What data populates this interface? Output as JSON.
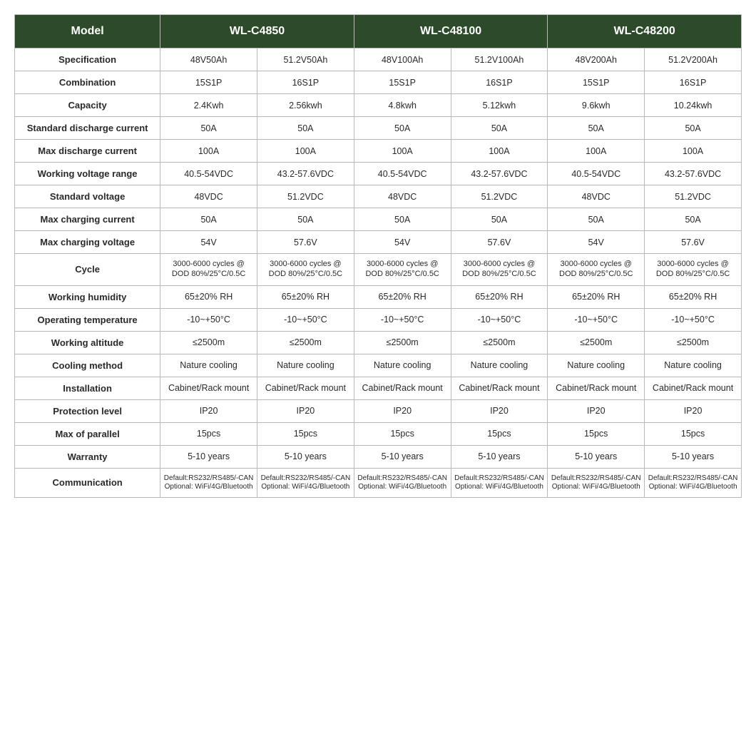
{
  "header": {
    "model_label": "Model",
    "models": [
      "WL-C4850",
      "WL-C48100",
      "WL-C48200"
    ]
  },
  "rows": [
    {
      "label": "Specification",
      "cells": [
        "48V50Ah",
        "51.2V50Ah",
        "48V100Ah",
        "51.2V100Ah",
        "48V200Ah",
        "51.2V200Ah"
      ]
    },
    {
      "label": "Combination",
      "cells": [
        "15S1P",
        "16S1P",
        "15S1P",
        "16S1P",
        "15S1P",
        "16S1P"
      ]
    },
    {
      "label": "Capacity",
      "cells": [
        "2.4Kwh",
        "2.56kwh",
        "4.8kwh",
        "5.12kwh",
        "9.6kwh",
        "10.24kwh"
      ]
    },
    {
      "label": "Standard discharge current",
      "cells": [
        "50A",
        "50A",
        "50A",
        "50A",
        "50A",
        "50A"
      ]
    },
    {
      "label": "Max discharge current",
      "cells": [
        "100A",
        "100A",
        "100A",
        "100A",
        "100A",
        "100A"
      ]
    },
    {
      "label": "Working voltage range",
      "cells": [
        "40.5-54VDC",
        "43.2-57.6VDC",
        "40.5-54VDC",
        "43.2-57.6VDC",
        "40.5-54VDC",
        "43.2-57.6VDC"
      ]
    },
    {
      "label": "Standard voltage",
      "cells": [
        "48VDC",
        "51.2VDC",
        "48VDC",
        "51.2VDC",
        "48VDC",
        "51.2VDC"
      ]
    },
    {
      "label": "Max charging current",
      "cells": [
        "50A",
        "50A",
        "50A",
        "50A",
        "50A",
        "50A"
      ]
    },
    {
      "label": "Max charging voltage",
      "cells": [
        "54V",
        "57.6V",
        "54V",
        "57.6V",
        "54V",
        "57.6V"
      ]
    },
    {
      "label": "Cycle",
      "small": true,
      "cells": [
        "3000-6000 cycles @ DOD 80%/25°C/0.5C",
        "3000-6000 cycles @ DOD 80%/25°C/0.5C",
        "3000-6000 cycles @ DOD 80%/25°C/0.5C",
        "3000-6000 cycles @ DOD 80%/25°C/0.5C",
        "3000-6000 cycles @ DOD 80%/25°C/0.5C",
        "3000-6000 cycles @ DOD 80%/25°C/0.5C"
      ]
    },
    {
      "label": "Working humidity",
      "cells": [
        "65±20% RH",
        "65±20% RH",
        "65±20% RH",
        "65±20% RH",
        "65±20% RH",
        "65±20% RH"
      ]
    },
    {
      "label": "Operating temperature",
      "cells": [
        "-10~+50°C",
        "-10~+50°C",
        "-10~+50°C",
        "-10~+50°C",
        "-10~+50°C",
        "-10~+50°C"
      ]
    },
    {
      "label": "Working altitude",
      "cells": [
        "≤2500m",
        "≤2500m",
        "≤2500m",
        "≤2500m",
        "≤2500m",
        "≤2500m"
      ]
    },
    {
      "label": "Cooling method",
      "cells": [
        "Nature cooling",
        "Nature cooling",
        "Nature cooling",
        "Nature cooling",
        "Nature cooling",
        "Nature cooling"
      ]
    },
    {
      "label": "Installation",
      "cells": [
        "Cabinet/Rack mount",
        "Cabinet/Rack mount",
        "Cabinet/Rack mount",
        "Cabinet/Rack mount",
        "Cabinet/Rack mount",
        "Cabinet/Rack mount"
      ]
    },
    {
      "label": "Protection level",
      "cells": [
        "IP20",
        "IP20",
        "IP20",
        "IP20",
        "IP20",
        "IP20"
      ]
    },
    {
      "label": "Max of parallel",
      "cells": [
        "15pcs",
        "15pcs",
        "15pcs",
        "15pcs",
        "15pcs",
        "15pcs"
      ]
    },
    {
      "label": "Warranty",
      "cells": [
        "5-10 years",
        "5-10 years",
        "5-10 years",
        "5-10 years",
        "5-10 years",
        "5-10 years"
      ]
    },
    {
      "label": "Communication",
      "cut": true,
      "cells": [
        "Default:RS232/RS485/-CAN Optional: WiFi/4G/Bluetooth",
        "Default:RS232/RS485/-CAN Optional: WiFi/4G/Bluetooth",
        "Default:RS232/RS485/-CAN Optional: WiFi/4G/Bluetooth",
        "Default:RS232/RS485/-CAN Optional: WiFi/4G/Bluetooth",
        "Default:RS232/RS485/-CAN Optional: WiFi/4G/Bluetooth",
        "Default:RS232/RS485/-CAN Optional: WiFi/4G/Bluetooth"
      ]
    }
  ],
  "colors": {
    "header_bg": "#2d4a2a",
    "header_fg": "#ffffff",
    "border": "#b8b8b8",
    "text": "#2a2a2a"
  }
}
